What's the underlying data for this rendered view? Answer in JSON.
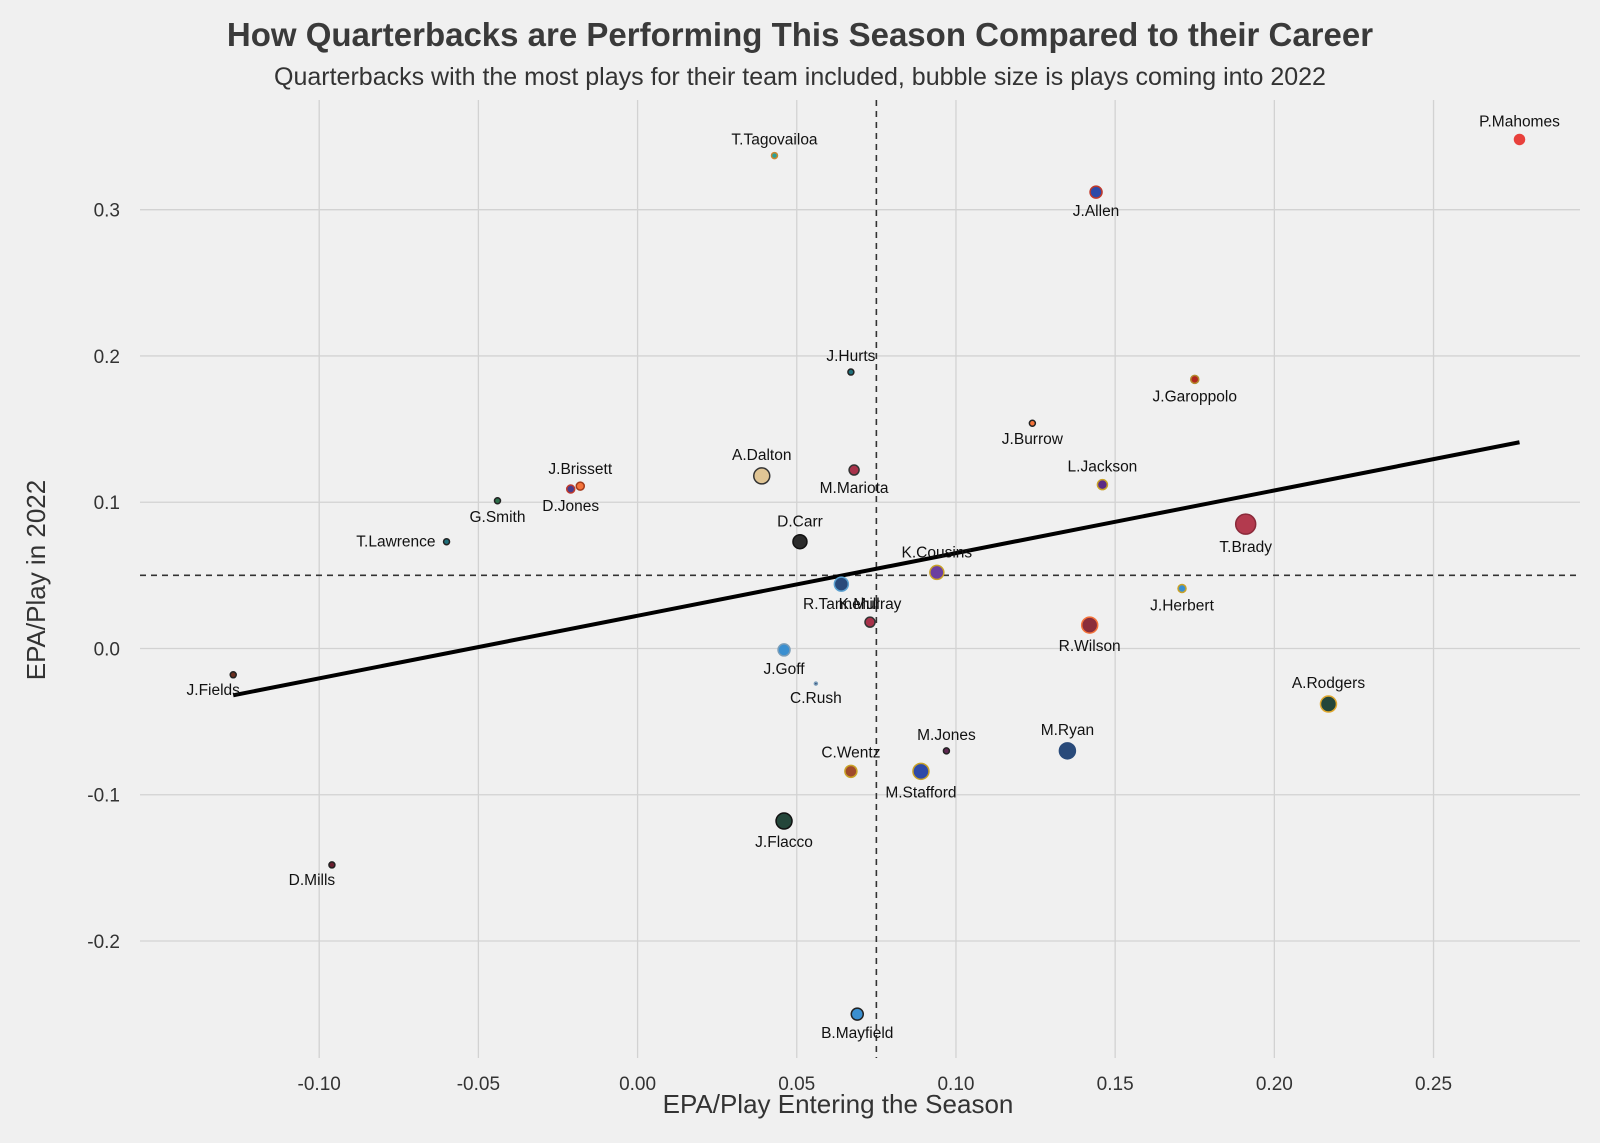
{
  "title": "How Quarterbacks are Performing This Season Compared to their Career",
  "subtitle": "Quarterbacks with the most plays for their team included, bubble size is plays coming into 2022",
  "chart_data": {
    "type": "scatter",
    "xlabel": "EPA/Play Entering the Season",
    "ylabel": "EPA/Play in 2022",
    "xlim": [
      -0.15,
      0.296
    ],
    "ylim": [
      -0.28,
      0.375
    ],
    "x_ticks": [
      "-0.10",
      "-0.05",
      "0.00",
      "0.05",
      "0.10",
      "0.15",
      "0.20",
      "0.25"
    ],
    "y_ticks": [
      "0.3",
      "0.2",
      "0.1",
      "0.0",
      "-0.1",
      "-0.2"
    ],
    "grid": true,
    "reference_lines": {
      "x": 0.075,
      "y": 0.05,
      "style": "dashed"
    },
    "trend_line": {
      "x": [
        -0.127,
        0.277
      ],
      "y": [
        -0.032,
        0.141
      ]
    },
    "points": [
      {
        "name": "P.Mahomes",
        "x": 0.277,
        "y": 0.348,
        "size": 5,
        "color": "#e8413c",
        "stroke": "#e8413c",
        "label_pos": "above"
      },
      {
        "name": "T.Tagovailoa",
        "x": 0.043,
        "y": 0.337,
        "size": 3,
        "color": "#2aa198",
        "stroke": "#c9862e",
        "label_pos": "above"
      },
      {
        "name": "J.Allen",
        "x": 0.144,
        "y": 0.312,
        "size": 6,
        "color": "#2e4aa8",
        "stroke": "#c0392b",
        "label_pos": "below"
      },
      {
        "name": "J.Hurts",
        "x": 0.067,
        "y": 0.189,
        "size": 3,
        "color": "#1f6f7a",
        "stroke": "#222222",
        "label_pos": "above"
      },
      {
        "name": "J.Garoppolo",
        "x": 0.175,
        "y": 0.184,
        "size": 4,
        "color": "#b0281e",
        "stroke": "#b38b2e",
        "label_pos": "below"
      },
      {
        "name": "J.Burrow",
        "x": 0.124,
        "y": 0.154,
        "size": 3,
        "color": "#f4733a",
        "stroke": "#222222",
        "label_pos": "below"
      },
      {
        "name": "M.Mariota",
        "x": 0.068,
        "y": 0.122,
        "size": 5,
        "color": "#a8324a",
        "stroke": "#333333",
        "label_pos": "below"
      },
      {
        "name": "A.Dalton",
        "x": 0.039,
        "y": 0.118,
        "size": 8,
        "color": "#e0c595",
        "stroke": "#333333",
        "label_pos": "above"
      },
      {
        "name": "L.Jackson",
        "x": 0.146,
        "y": 0.112,
        "size": 5,
        "color": "#5b2a86",
        "stroke": "#c9a227",
        "label_pos": "above"
      },
      {
        "name": "J.Brissett",
        "x": -0.018,
        "y": 0.111,
        "size": 4,
        "color": "#f4733a",
        "stroke": "#a33a1a",
        "label_pos": "above"
      },
      {
        "name": "D.Jones",
        "x": -0.021,
        "y": 0.109,
        "size": 4,
        "color": "#4b3b8a",
        "stroke": "#c0392b",
        "label_pos": "below"
      },
      {
        "name": "G.Smith",
        "x": -0.044,
        "y": 0.101,
        "size": 3,
        "color": "#2c6e49",
        "stroke": "#222222",
        "label_pos": "below"
      },
      {
        "name": "T.Brady",
        "x": 0.191,
        "y": 0.085,
        "size": 10,
        "color": "#b33a4e",
        "stroke": "#8a2a3a",
        "label_pos": "below"
      },
      {
        "name": "T.Lawrence",
        "x": -0.06,
        "y": 0.073,
        "size": 3,
        "color": "#1f6f7a",
        "stroke": "#222222",
        "label_pos": "left"
      },
      {
        "name": "D.Carr",
        "x": 0.051,
        "y": 0.073,
        "size": 7,
        "color": "#2b2b2b",
        "stroke": "#111111",
        "label_pos": "above"
      },
      {
        "name": "K.Cousins",
        "x": 0.094,
        "y": 0.052,
        "size": 7,
        "color": "#6b3fa0",
        "stroke": "#c9a227",
        "label_pos": "above"
      },
      {
        "name": "R.Tannehill",
        "x": 0.064,
        "y": 0.044,
        "size": 7,
        "color": "#294a7a",
        "stroke": "#5aa0d0",
        "label_pos": "below"
      },
      {
        "name": "J.Herbert",
        "x": 0.171,
        "y": 0.041,
        "size": 4,
        "color": "#3a8fd0",
        "stroke": "#c9a227",
        "label_pos": "below"
      },
      {
        "name": "K.Murray",
        "x": 0.073,
        "y": 0.018,
        "size": 5,
        "color": "#a8324a",
        "stroke": "#333333",
        "label_pos": "above"
      },
      {
        "name": "R.Wilson",
        "x": 0.142,
        "y": 0.016,
        "size": 8,
        "color": "#8a2d3a",
        "stroke": "#f4733a",
        "label_pos": "below"
      },
      {
        "name": "J.Goff",
        "x": 0.046,
        "y": -0.001,
        "size": 6,
        "color": "#3a8fd0",
        "stroke": "#7a9db8",
        "label_pos": "below"
      },
      {
        "name": "J.Fields",
        "x": -0.127,
        "y": -0.018,
        "size": 3,
        "color": "#6a2e1f",
        "stroke": "#222222",
        "label_pos": "below-left"
      },
      {
        "name": "C.Rush",
        "x": 0.056,
        "y": -0.024,
        "size": 1.5,
        "color": "#2a3f6e",
        "stroke": "#7a9db8",
        "label_pos": "below"
      },
      {
        "name": "A.Rodgers",
        "x": 0.217,
        "y": -0.038,
        "size": 8,
        "color": "#24463a",
        "stroke": "#e0a82e",
        "label_pos": "above"
      },
      {
        "name": "M.Ryan",
        "x": 0.135,
        "y": -0.07,
        "size": 8,
        "color": "#294a7a",
        "stroke": "#294a7a",
        "label_pos": "above"
      },
      {
        "name": "M.Jones",
        "x": 0.097,
        "y": -0.07,
        "size": 3,
        "color": "#5e2750",
        "stroke": "#222222",
        "label_pos": "above"
      },
      {
        "name": "M.Stafford",
        "x": 0.089,
        "y": -0.084,
        "size": 8,
        "color": "#2e4aa8",
        "stroke": "#c9a227",
        "label_pos": "below"
      },
      {
        "name": "C.Wentz",
        "x": 0.067,
        "y": -0.084,
        "size": 6,
        "color": "#a04a2a",
        "stroke": "#c9a227",
        "label_pos": "above"
      },
      {
        "name": "J.Flacco",
        "x": 0.046,
        "y": -0.118,
        "size": 8,
        "color": "#24463a",
        "stroke": "#111111",
        "label_pos": "below"
      },
      {
        "name": "D.Mills",
        "x": -0.096,
        "y": -0.148,
        "size": 3,
        "color": "#6a1f2e",
        "stroke": "#222222",
        "label_pos": "below-left"
      },
      {
        "name": "B.Mayfield",
        "x": 0.069,
        "y": -0.25,
        "size": 6,
        "color": "#3a8fd0",
        "stroke": "#222222",
        "label_pos": "below"
      }
    ]
  }
}
